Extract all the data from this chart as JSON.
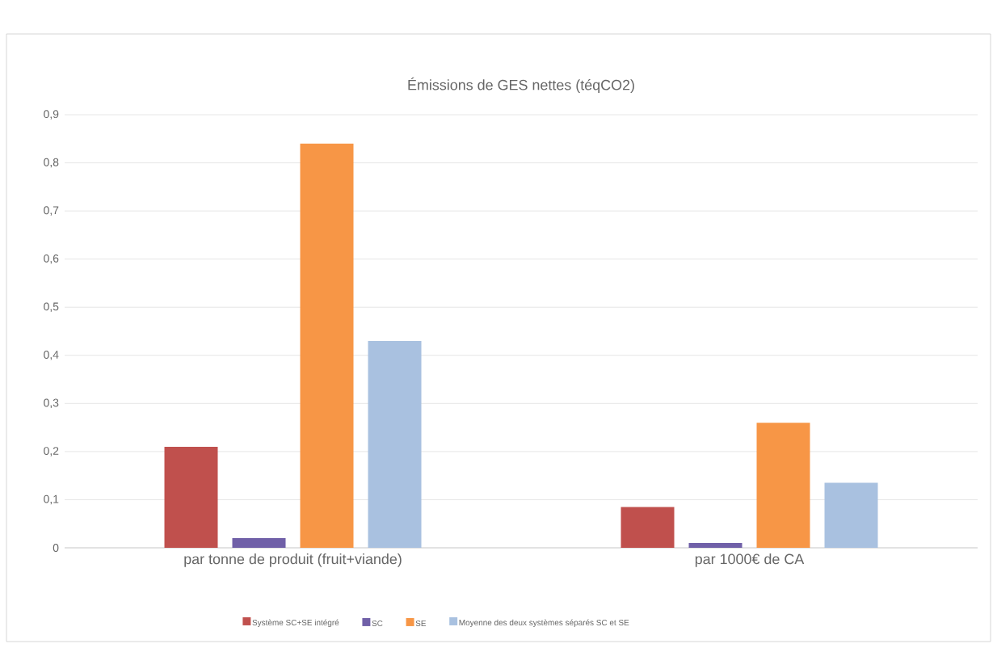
{
  "chart_data": {
    "type": "bar",
    "title": "Émissions de GES nettes (téqCO2)",
    "categories": [
      "par tonne de produit (fruit+viande)",
      "par 1000€ de CA"
    ],
    "series": [
      {
        "name": "Système SC+SE intégré",
        "color": "#c0504d",
        "values": [
          0.21,
          0.085
        ]
      },
      {
        "name": "SC",
        "color": "#7060a8",
        "values": [
          0.02,
          0.01
        ]
      },
      {
        "name": "SE",
        "color": "#f79646",
        "values": [
          0.84,
          0.26
        ]
      },
      {
        "name": "Moyenne des deux systèmes séparés SC et SE",
        "color": "#a9c1e0",
        "values": [
          0.43,
          0.135
        ]
      }
    ],
    "ylim": [
      0,
      0.9
    ],
    "yticks": [
      {
        "value": 0,
        "label": "0"
      },
      {
        "value": 0.1,
        "label": "0,1"
      },
      {
        "value": 0.2,
        "label": "0,2"
      },
      {
        "value": 0.3,
        "label": "0,3"
      },
      {
        "value": 0.4,
        "label": "0,4"
      },
      {
        "value": 0.5,
        "label": "0,5"
      },
      {
        "value": 0.6,
        "label": "0,6"
      },
      {
        "value": 0.7,
        "label": "0,7"
      },
      {
        "value": 0.8,
        "label": "0,8"
      },
      {
        "value": 0.9,
        "label": "0,9"
      }
    ],
    "grid": "y",
    "legend": "bottom"
  }
}
